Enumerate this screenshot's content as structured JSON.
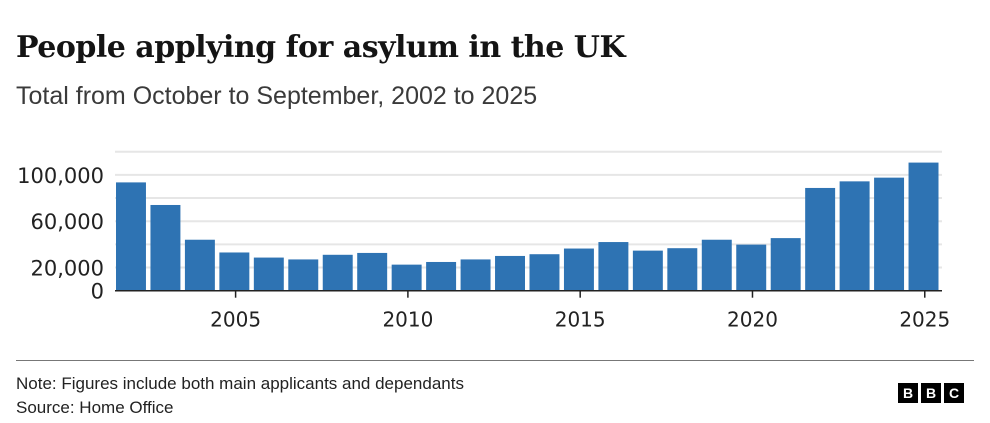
{
  "chart_data": {
    "type": "bar",
    "title": "People applying for asylum in the UK",
    "subtitle": "Total from October to September, 2002 to 2025",
    "xlabel": "",
    "ylabel": "",
    "categories": [
      2002,
      2003,
      2004,
      2005,
      2006,
      2007,
      2008,
      2009,
      2010,
      2011,
      2012,
      2013,
      2014,
      2015,
      2016,
      2017,
      2018,
      2019,
      2020,
      2021,
      2022,
      2023,
      2024,
      2025
    ],
    "values": [
      93500,
      74000,
      44000,
      33000,
      28600,
      27000,
      31000,
      32600,
      22500,
      24800,
      27000,
      30000,
      31500,
      36400,
      42000,
      34600,
      36700,
      44000,
      39800,
      45400,
      88700,
      94400,
      97600,
      110600
    ],
    "ylim": [
      0,
      120000
    ],
    "gridlines": [
      0,
      20000,
      40000,
      60000,
      80000,
      100000,
      120000
    ],
    "ytick_labels": [
      {
        "value": 0,
        "label": "0"
      },
      {
        "value": 20000,
        "label": "20,000"
      },
      {
        "value": 60000,
        "label": "60,000"
      },
      {
        "value": 100000,
        "label": "100,000"
      }
    ],
    "xtick_labels": [
      {
        "value": 2005,
        "label": "2005"
      },
      {
        "value": 2010,
        "label": "2010"
      },
      {
        "value": 2015,
        "label": "2015"
      },
      {
        "value": 2020,
        "label": "2020"
      },
      {
        "value": 2025,
        "label": "2025"
      }
    ],
    "bar_color": "#2e73b3",
    "grid": true
  },
  "footer": {
    "note": "Note: Figures include both main applicants and dependands",
    "source": "Source: Home Office",
    "logo": [
      "B",
      "B",
      "C"
    ]
  }
}
